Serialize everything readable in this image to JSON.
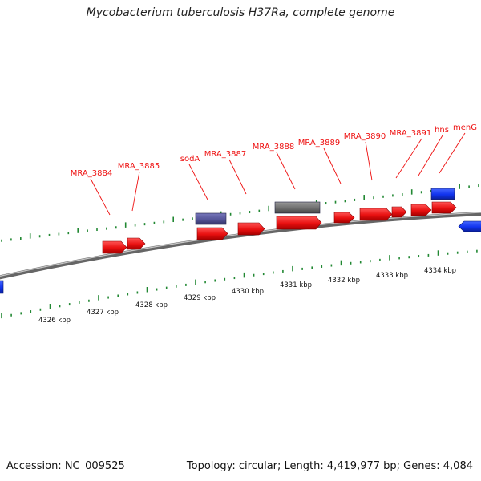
{
  "title": "Mycobacterium tuberculosis H37Ra, complete genome",
  "footer": {
    "accession": "Accession: NC_009525",
    "topology": "Topology: circular; Length: 4,419,977 bp; Genes: 4,084"
  },
  "colors": {
    "gene": "#ee1111",
    "gene_edge": "#991111",
    "other_forward": "#555599",
    "other_pseudo": "#6e6e6e",
    "reverse": "#1133ee",
    "ticks": "#228833",
    "backbone": "#888888",
    "label": "#ee1111"
  },
  "kbp_labels": [
    "4326 kbp",
    "4327 kbp",
    "4328 kbp",
    "4329 kbp",
    "4330 kbp",
    "4331 kbp",
    "4332 kbp",
    "4333 kbp",
    "4334 kbp"
  ],
  "gene_labels": [
    "MRA_3884",
    "MRA_3885",
    "sodA",
    "MRA_3887",
    "MRA_3888",
    "MRA_3889",
    "MRA_3890",
    "MRA_3891",
    "hns",
    "menG"
  ]
}
